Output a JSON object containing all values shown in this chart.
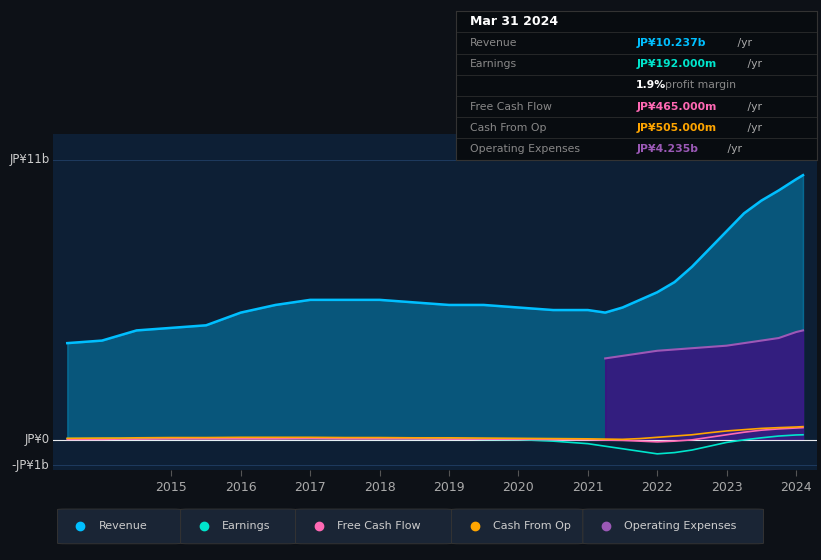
{
  "background_color": "#0d1117",
  "plot_bg_color": "#0d1f35",
  "ylabel_top": "JP¥11b",
  "ylabel_mid": "JP¥0",
  "ylabel_bot": "-JP¥1b",
  "x_labels": [
    "2015",
    "2016",
    "2017",
    "2018",
    "2019",
    "2020",
    "2021",
    "2022",
    "2023",
    "2024"
  ],
  "years": [
    2013.5,
    2014.0,
    2014.25,
    2014.5,
    2015.0,
    2015.5,
    2016.0,
    2016.5,
    2017.0,
    2017.5,
    2018.0,
    2018.5,
    2019.0,
    2019.5,
    2020.0,
    2020.5,
    2021.0,
    2021.25,
    2021.5,
    2021.75,
    2022.0,
    2022.25,
    2022.5,
    2022.75,
    2023.0,
    2023.25,
    2023.5,
    2023.75,
    2024.0,
    2024.1
  ],
  "revenue": [
    3.8,
    3.9,
    4.1,
    4.3,
    4.4,
    4.5,
    5.0,
    5.3,
    5.5,
    5.5,
    5.5,
    5.4,
    5.3,
    5.3,
    5.2,
    5.1,
    5.1,
    5.0,
    5.2,
    5.5,
    5.8,
    6.2,
    6.8,
    7.5,
    8.2,
    8.9,
    9.4,
    9.8,
    10.237,
    10.4
  ],
  "earnings": [
    0.05,
    0.05,
    0.06,
    0.06,
    0.07,
    0.07,
    0.08,
    0.08,
    0.07,
    0.07,
    0.06,
    0.05,
    0.04,
    0.02,
    0.01,
    -0.05,
    -0.15,
    -0.25,
    -0.35,
    -0.45,
    -0.55,
    -0.5,
    -0.4,
    -0.25,
    -0.1,
    0.0,
    0.08,
    0.15,
    0.192,
    0.2
  ],
  "free_cash_flow": [
    0.02,
    0.02,
    0.03,
    0.03,
    0.04,
    0.04,
    0.04,
    0.04,
    0.05,
    0.04,
    0.04,
    0.04,
    0.03,
    0.03,
    0.02,
    0.01,
    0.01,
    -0.01,
    -0.02,
    -0.05,
    -0.08,
    -0.05,
    0.0,
    0.1,
    0.2,
    0.3,
    0.38,
    0.43,
    0.465,
    0.48
  ],
  "cash_from_op": [
    0.06,
    0.07,
    0.07,
    0.08,
    0.09,
    0.09,
    0.1,
    0.1,
    0.1,
    0.09,
    0.09,
    0.08,
    0.08,
    0.07,
    0.06,
    0.05,
    0.04,
    0.03,
    0.02,
    0.05,
    0.1,
    0.15,
    0.2,
    0.28,
    0.35,
    0.4,
    0.45,
    0.48,
    0.505,
    0.52
  ],
  "op_expenses": [
    0.0,
    0.0,
    0.0,
    0.0,
    0.0,
    0.0,
    0.0,
    0.0,
    0.0,
    0.0,
    0.0,
    0.0,
    0.0,
    0.0,
    0.0,
    0.0,
    0.0,
    3.2,
    3.3,
    3.4,
    3.5,
    3.55,
    3.6,
    3.65,
    3.7,
    3.8,
    3.9,
    4.0,
    4.235,
    4.3
  ],
  "revenue_color": "#00bfff",
  "earnings_color": "#00e5cc",
  "free_cash_flow_color": "#ff69b4",
  "cash_from_op_color": "#ffa500",
  "op_expenses_color": "#9b59b6",
  "op_expenses_fill_color": "#4b0082",
  "grid_color": "#1e3a5f",
  "ylim": [
    -1.2,
    12.0
  ],
  "xlim": [
    2013.3,
    2024.3
  ],
  "tooltip_title": "Mar 31 2024",
  "tooltip_rows": [
    {
      "label": "Revenue",
      "value": "JP¥10.237b",
      "suffix": " /yr",
      "color": "#00bfff"
    },
    {
      "label": "Earnings",
      "value": "JP¥192.000m",
      "suffix": " /yr",
      "color": "#00e5cc"
    },
    {
      "label": "",
      "value": "1.9%",
      "suffix": " profit margin",
      "color": "white"
    },
    {
      "label": "Free Cash Flow",
      "value": "JP¥465.000m",
      "suffix": " /yr",
      "color": "#ff69b4"
    },
    {
      "label": "Cash From Op",
      "value": "JP¥505.000m",
      "suffix": " /yr",
      "color": "#ffa500"
    },
    {
      "label": "Operating Expenses",
      "value": "JP¥4.235b",
      "suffix": " /yr",
      "color": "#9b59b6"
    }
  ],
  "legend_items": [
    {
      "label": "Revenue",
      "color": "#00bfff"
    },
    {
      "label": "Earnings",
      "color": "#00e5cc"
    },
    {
      "label": "Free Cash Flow",
      "color": "#ff69b4"
    },
    {
      "label": "Cash From Op",
      "color": "#ffa500"
    },
    {
      "label": "Operating Expenses",
      "color": "#9b59b6"
    }
  ]
}
